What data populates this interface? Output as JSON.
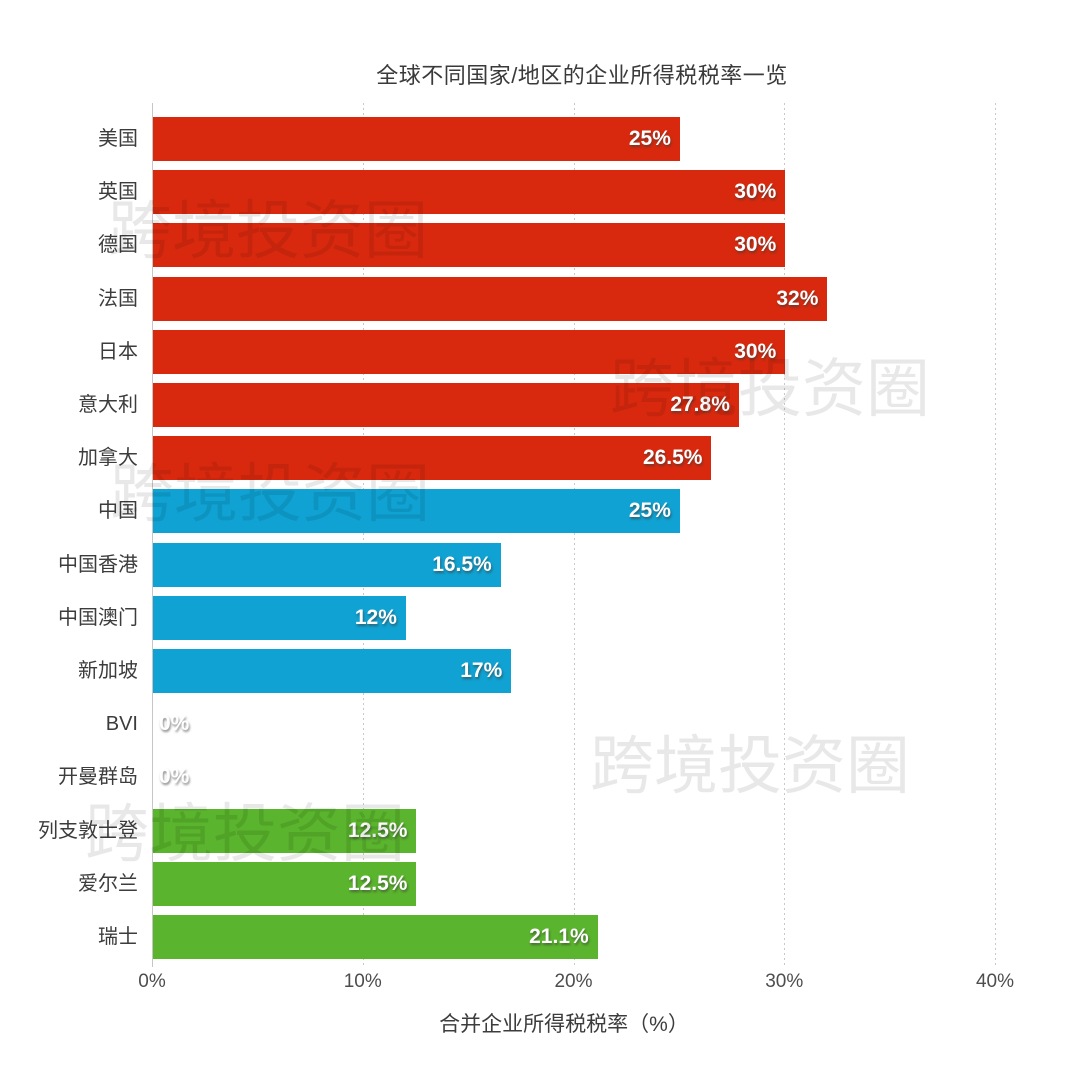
{
  "title": "全球不同国家/地区的企业所得税税率一览",
  "watermark": {
    "text": "跨境投资圈"
  },
  "colors": {
    "red_group": "#D8290E",
    "blue_group": "#0FA2D2",
    "green_group": "#5AB42D",
    "gridline": "#c9c9c9",
    "axis_line": "#c6c6c6",
    "category_text": "#3c3c3c",
    "tick_text": "#4d4d4d",
    "value_text": "#ffffff",
    "watermark_text": "rgba(0,0,0,0.09)"
  },
  "chart_data": {
    "type": "bar",
    "orientation": "horizontal",
    "title": "全球不同国家/地区的企业所得税税率一览",
    "xlabel": "合并企业所得税税率（%）",
    "ylabel": "",
    "xlim": [
      0,
      40
    ],
    "grid": "vertical dotted gridlines at each 10% tick",
    "legend": "none",
    "x_ticks": [
      {
        "value": 0,
        "label": "0%"
      },
      {
        "value": 10,
        "label": "10%"
      },
      {
        "value": 20,
        "label": "20%"
      },
      {
        "value": 30,
        "label": "30%"
      },
      {
        "value": 40,
        "label": "40%"
      }
    ],
    "bars": [
      {
        "category": "美国",
        "value": 25,
        "label": "25%",
        "color": "#D8290E"
      },
      {
        "category": "英国",
        "value": 30,
        "label": "30%",
        "color": "#D8290E"
      },
      {
        "category": "德国",
        "value": 30,
        "label": "30%",
        "color": "#D8290E"
      },
      {
        "category": "法国",
        "value": 32,
        "label": "32%",
        "color": "#D8290E"
      },
      {
        "category": "日本",
        "value": 30,
        "label": "30%",
        "color": "#D8290E"
      },
      {
        "category": "意大利",
        "value": 27.8,
        "label": "27.8%",
        "color": "#D8290E"
      },
      {
        "category": "加拿大",
        "value": 26.5,
        "label": "26.5%",
        "color": "#D8290E"
      },
      {
        "category": "中国",
        "value": 25,
        "label": "25%",
        "color": "#0FA2D2"
      },
      {
        "category": "中国香港",
        "value": 16.5,
        "label": "16.5%",
        "color": "#0FA2D2"
      },
      {
        "category": "中国澳门",
        "value": 12,
        "label": "12%",
        "color": "#0FA2D2"
      },
      {
        "category": "新加坡",
        "value": 17,
        "label": "17%",
        "color": "#0FA2D2"
      },
      {
        "category": "BVI",
        "value": 0,
        "label": "0%",
        "color": "#0FA2D2"
      },
      {
        "category": "开曼群岛",
        "value": 0,
        "label": "0%",
        "color": "#0FA2D2"
      },
      {
        "category": "列支敦士登",
        "value": 12.5,
        "label": "12.5%",
        "color": "#5AB42D"
      },
      {
        "category": "爱尔兰",
        "value": 12.5,
        "label": "12.5%",
        "color": "#5AB42D"
      },
      {
        "category": "瑞士",
        "value": 21.1,
        "label": "21.1%",
        "color": "#5AB42D"
      }
    ]
  }
}
